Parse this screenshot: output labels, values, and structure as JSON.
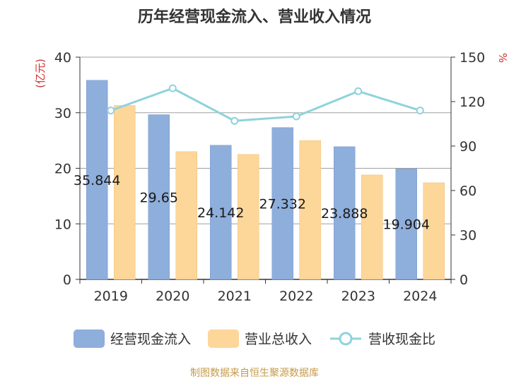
{
  "title": "历年经营现金流入、营业收入情况",
  "footer": "制图数据来自恒生聚源数据库",
  "chart_data": {
    "type": "bar",
    "categories": [
      "2019",
      "2020",
      "2021",
      "2022",
      "2023",
      "2024"
    ],
    "series": [
      {
        "name": "经营现金流入",
        "type": "bar",
        "axis": "left",
        "color": "#8eaedb",
        "values": [
          35.844,
          29.65,
          24.142,
          27.332,
          23.888,
          19.904
        ],
        "labels": [
          "35.844",
          "29.65",
          "24.142",
          "27.332",
          "23.888",
          "19.904"
        ]
      },
      {
        "name": "营业总收入",
        "type": "bar",
        "axis": "left",
        "color": "#fdd699",
        "values": [
          31.3,
          23.0,
          22.5,
          25.0,
          18.8,
          17.4
        ]
      },
      {
        "name": "营收现金比",
        "type": "line",
        "axis": "right",
        "color": "#8fd3dc",
        "values": [
          114,
          129,
          107,
          110,
          127,
          114
        ]
      }
    ],
    "left_axis": {
      "label": "(亿元)",
      "min": 0,
      "max": 40,
      "ticks": [
        0,
        10,
        20,
        30,
        40
      ]
    },
    "right_axis": {
      "label": "%",
      "min": 0,
      "max": 150,
      "ticks": [
        0,
        30,
        60,
        90,
        120,
        150
      ]
    },
    "grid": true,
    "legend_position": "bottom"
  }
}
